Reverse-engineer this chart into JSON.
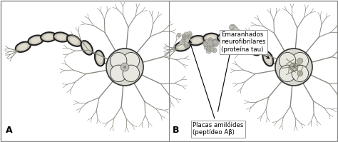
{
  "figsize": [
    4.74,
    1.99
  ],
  "dpi": 100,
  "bg_color": "#ffffff",
  "border_color": "#888888",
  "panel_A_label": "A",
  "panel_B_label": "B",
  "label_fontsize": 9,
  "annotation1_text": "Placas amilóides\n(peptídeo Aβ)",
  "annotation2_text": "Emaranhados\nneurofibrilares\n(proteína tau)",
  "annotation_fontsize": 6.2,
  "soma_color": "#d8d8d0",
  "soma_edge": "#333333",
  "soma_lobe_color": "#e8e8e0",
  "nucleus_color": "#c0beb8",
  "nucleus_edge": "#888880",
  "myelin_fill": "#c8c4b8",
  "myelin_edge": "#222222",
  "myelin_inner": "#e0dcd0",
  "axon_color": "#555550",
  "dendrite_color": "#888880",
  "plaque_fill": "#b8b8b0",
  "plaque_edge": "#777770",
  "tangle_color": "#666655"
}
